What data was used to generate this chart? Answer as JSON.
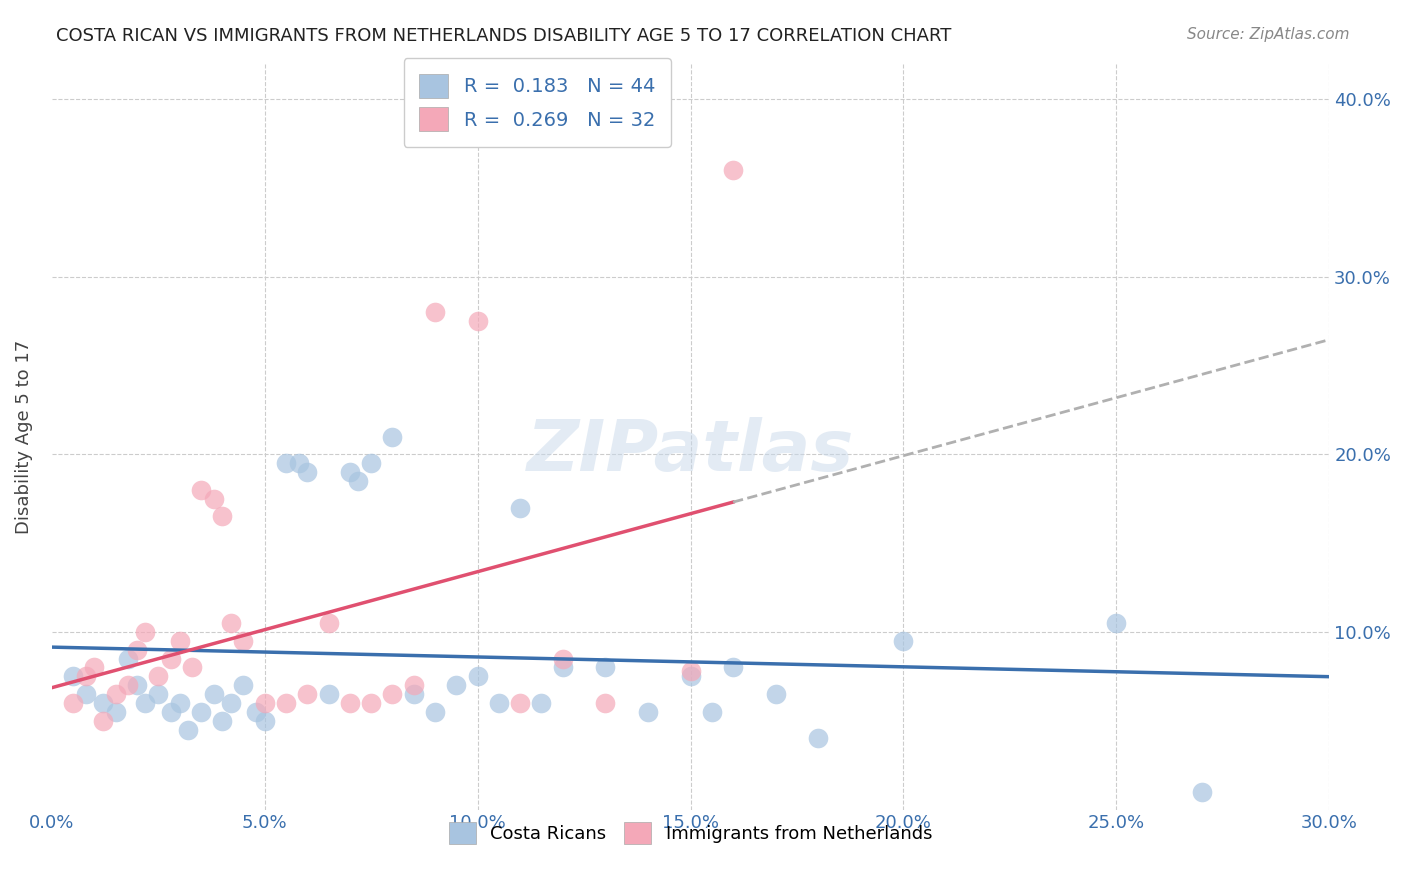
{
  "title": "COSTA RICAN VS IMMIGRANTS FROM NETHERLANDS DISABILITY AGE 5 TO 17 CORRELATION CHART",
  "source": "Source: ZipAtlas.com",
  "ylabel": "Disability Age 5 to 17",
  "xlim": [
    0.0,
    0.3
  ],
  "ylim": [
    0.0,
    0.42
  ],
  "xticks": [
    0.0,
    0.05,
    0.1,
    0.15,
    0.2,
    0.25,
    0.3
  ],
  "yticks": [
    0.0,
    0.1,
    0.2,
    0.3,
    0.4
  ],
  "ytick_labels": [
    "",
    "10.0%",
    "20.0%",
    "30.0%",
    "40.0%"
  ],
  "xtick_labels": [
    "0.0%",
    "5.0%",
    "10.0%",
    "15.0%",
    "20.0%",
    "25.0%",
    "30.0%"
  ],
  "blue_R": 0.183,
  "blue_N": 44,
  "pink_R": 0.269,
  "pink_N": 32,
  "blue_color": "#a8c4e0",
  "pink_color": "#f4a8b8",
  "blue_line_color": "#3a6fad",
  "pink_line_color": "#e05070",
  "watermark": "ZIPatlas",
  "legend_label_blue": "Costa Ricans",
  "legend_label_pink": "Immigrants from Netherlands",
  "blue_scatter_x": [
    0.005,
    0.008,
    0.012,
    0.015,
    0.018,
    0.02,
    0.022,
    0.025,
    0.028,
    0.03,
    0.032,
    0.035,
    0.038,
    0.04,
    0.042,
    0.045,
    0.048,
    0.05,
    0.055,
    0.058,
    0.06,
    0.065,
    0.07,
    0.072,
    0.075,
    0.08,
    0.085,
    0.09,
    0.095,
    0.1,
    0.105,
    0.11,
    0.115,
    0.12,
    0.13,
    0.14,
    0.15,
    0.155,
    0.16,
    0.17,
    0.18,
    0.2,
    0.25,
    0.27
  ],
  "blue_scatter_y": [
    0.075,
    0.065,
    0.06,
    0.055,
    0.085,
    0.07,
    0.06,
    0.065,
    0.055,
    0.06,
    0.045,
    0.055,
    0.065,
    0.05,
    0.06,
    0.07,
    0.055,
    0.05,
    0.195,
    0.195,
    0.19,
    0.065,
    0.19,
    0.185,
    0.195,
    0.21,
    0.065,
    0.055,
    0.07,
    0.075,
    0.06,
    0.17,
    0.06,
    0.08,
    0.08,
    0.055,
    0.075,
    0.055,
    0.08,
    0.065,
    0.04,
    0.095,
    0.105,
    0.01
  ],
  "pink_scatter_x": [
    0.005,
    0.008,
    0.01,
    0.012,
    0.015,
    0.018,
    0.02,
    0.022,
    0.025,
    0.028,
    0.03,
    0.033,
    0.035,
    0.038,
    0.04,
    0.042,
    0.045,
    0.05,
    0.055,
    0.06,
    0.065,
    0.07,
    0.075,
    0.08,
    0.085,
    0.09,
    0.1,
    0.11,
    0.12,
    0.13,
    0.15,
    0.16
  ],
  "pink_scatter_y": [
    0.06,
    0.075,
    0.08,
    0.05,
    0.065,
    0.07,
    0.09,
    0.1,
    0.075,
    0.085,
    0.095,
    0.08,
    0.18,
    0.175,
    0.165,
    0.105,
    0.095,
    0.06,
    0.06,
    0.065,
    0.105,
    0.06,
    0.06,
    0.065,
    0.07,
    0.28,
    0.275,
    0.06,
    0.085,
    0.06,
    0.078,
    0.36
  ]
}
